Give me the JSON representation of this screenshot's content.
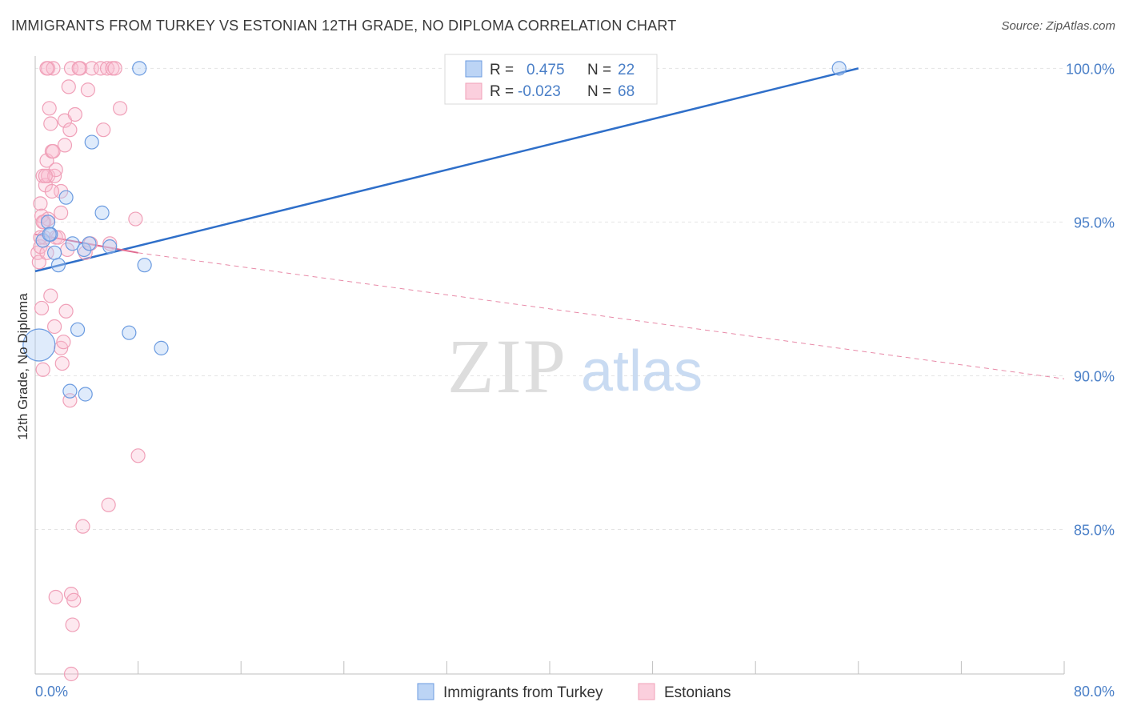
{
  "title": "IMMIGRANTS FROM TURKEY VS ESTONIAN 12TH GRADE, NO DIPLOMA CORRELATION CHART",
  "source": "Source: ZipAtlas.com",
  "colors": {
    "blue": "#6b9be0",
    "blue_line": "#2f6fc9",
    "pink": "#f0a0b8",
    "pink_line": "#e06a90",
    "tick": "#4a7fc7"
  },
  "watermark": {
    "zip": "ZIP",
    "atlas": "atlas"
  },
  "legend": {
    "rows": [
      {
        "r_label": "R =",
        "r_value": "0.475",
        "n_label": "N =",
        "n_value": "22"
      },
      {
        "r_label": "R =",
        "r_value": "-0.023",
        "n_label": "N =",
        "n_value": "68"
      }
    ]
  },
  "chart_data": {
    "type": "scatter",
    "title": "IMMIGRANTS FROM TURKEY VS ESTONIAN 12TH GRADE, NO DIPLOMA CORRELATION CHART",
    "xlabel": "",
    "ylabel": "12th Grade, No Diploma",
    "xlim": [
      0,
      80
    ],
    "ylim": [
      80.3,
      100.4
    ],
    "x_tick_labels": [
      "0.0%",
      "80.0%"
    ],
    "y_ticks": [
      85,
      90,
      95,
      100
    ],
    "y_tick_labels": [
      "85.0%",
      "90.0%",
      "95.0%",
      "100.0%"
    ],
    "series": [
      {
        "name": "Immigrants from Turkey",
        "color": "#6b9be0",
        "points": [
          [
            0.3,
            91.0
          ],
          [
            0.6,
            94.4
          ],
          [
            1.0,
            95.0
          ],
          [
            1.2,
            94.6
          ],
          [
            1.5,
            94.0
          ],
          [
            1.8,
            93.6
          ],
          [
            2.4,
            95.8
          ],
          [
            2.9,
            94.3
          ],
          [
            3.3,
            91.5
          ],
          [
            2.7,
            89.5
          ],
          [
            3.9,
            89.4
          ],
          [
            3.8,
            94.1
          ],
          [
            4.4,
            97.6
          ],
          [
            5.2,
            95.3
          ],
          [
            5.8,
            94.2
          ],
          [
            7.3,
            91.4
          ],
          [
            8.1,
            100.0
          ],
          [
            8.5,
            93.6
          ],
          [
            9.8,
            90.9
          ],
          [
            62.5,
            100.0
          ],
          [
            1.1,
            94.6
          ],
          [
            4.2,
            94.3
          ]
        ],
        "trend": [
          [
            0,
            93.4
          ],
          [
            64,
            100.0
          ]
        ]
      },
      {
        "name": "Estonians",
        "color": "#f0a0b8",
        "points": [
          [
            0.2,
            94.0
          ],
          [
            0.3,
            93.7
          ],
          [
            0.4,
            95.6
          ],
          [
            0.4,
            94.2
          ],
          [
            0.5,
            95.2
          ],
          [
            0.5,
            92.2
          ],
          [
            0.6,
            90.2
          ],
          [
            0.6,
            96.5
          ],
          [
            0.7,
            95.0
          ],
          [
            0.7,
            94.5
          ],
          [
            0.8,
            96.2
          ],
          [
            0.9,
            97.0
          ],
          [
            0.9,
            94.0
          ],
          [
            1.0,
            96.5
          ],
          [
            1.0,
            95.1
          ],
          [
            1.1,
            98.7
          ],
          [
            1.2,
            98.2
          ],
          [
            1.2,
            92.6
          ],
          [
            1.3,
            97.3
          ],
          [
            1.4,
            97.3
          ],
          [
            1.5,
            96.5
          ],
          [
            1.6,
            96.7
          ],
          [
            1.5,
            91.6
          ],
          [
            1.6,
            94.5
          ],
          [
            1.0,
            100.0
          ],
          [
            1.4,
            100.0
          ],
          [
            2.0,
            96.0
          ],
          [
            2.0,
            95.3
          ],
          [
            2.0,
            90.9
          ],
          [
            2.1,
            90.4
          ],
          [
            2.2,
            91.1
          ],
          [
            2.3,
            98.3
          ],
          [
            2.3,
            97.5
          ],
          [
            2.4,
            92.1
          ],
          [
            2.6,
            99.4
          ],
          [
            2.7,
            98.0
          ],
          [
            2.8,
            100.0
          ],
          [
            2.7,
            89.2
          ],
          [
            3.1,
            98.5
          ],
          [
            3.5,
            100.0
          ],
          [
            3.9,
            94.0
          ],
          [
            4.1,
            99.3
          ],
          [
            4.3,
            94.3
          ],
          [
            4.4,
            100.0
          ],
          [
            5.1,
            100.0
          ],
          [
            5.3,
            98.0
          ],
          [
            5.6,
            100.0
          ],
          [
            5.8,
            94.3
          ],
          [
            6.0,
            100.0
          ],
          [
            6.2,
            100.0
          ],
          [
            6.6,
            98.7
          ],
          [
            7.8,
            95.1
          ],
          [
            8.0,
            87.4
          ],
          [
            5.7,
            85.8
          ],
          [
            3.7,
            85.1
          ],
          [
            1.6,
            82.8
          ],
          [
            2.8,
            82.9
          ],
          [
            3.0,
            82.7
          ],
          [
            2.9,
            81.9
          ],
          [
            2.8,
            80.3
          ],
          [
            0.8,
            96.5
          ],
          [
            0.9,
            100.0
          ],
          [
            2.5,
            94.1
          ],
          [
            1.3,
            96.0
          ],
          [
            0.6,
            95.0
          ],
          [
            0.4,
            94.5
          ],
          [
            1.8,
            94.5
          ],
          [
            3.4,
            100.0
          ]
        ],
        "trend_solid": [
          [
            0,
            94.6
          ],
          [
            8,
            94.0
          ]
        ],
        "trend_dashed": [
          [
            8,
            94.0
          ],
          [
            80,
            89.9
          ]
        ]
      }
    ],
    "legend_position": "top-center",
    "bottom_legend": [
      "Immigrants from Turkey",
      "Estonians"
    ]
  }
}
